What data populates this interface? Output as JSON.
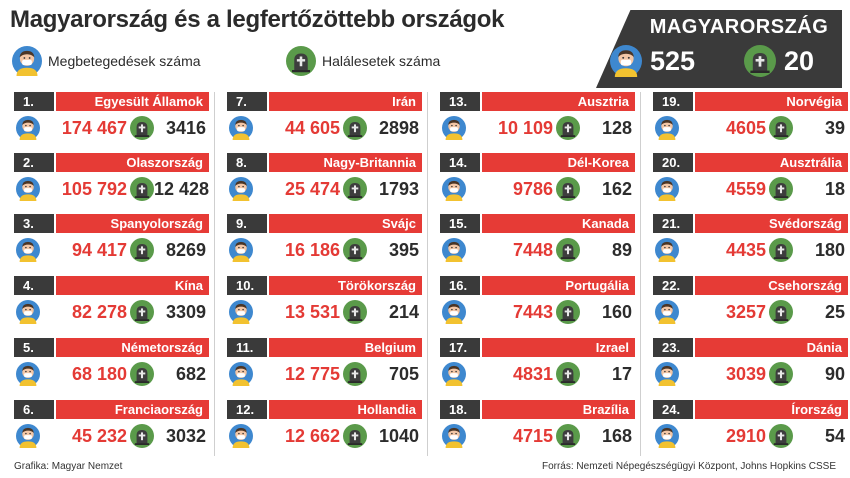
{
  "title": "Magyarország és a legfertőzöttebb országok",
  "legend": {
    "cases_icon": "person-mask-icon",
    "cases_label": "Megbetegedések száma",
    "deaths_icon": "tombstone-icon",
    "deaths_label": "Halálesetek száma"
  },
  "hungary": {
    "name": "MAGYARORSZÁG",
    "cases": "525",
    "deaths": "20"
  },
  "colors": {
    "red": "#e63b36",
    "dark": "#3a3a3a",
    "cases_text": "#e43a35",
    "face": "#f3c6a5",
    "mask_bg": "#3e88cf",
    "tomb_bg": "#5a9a4a"
  },
  "countries": [
    {
      "rank": "1.",
      "name": "Egyesült Államok",
      "cases": "174 467",
      "deaths": "3416"
    },
    {
      "rank": "2.",
      "name": "Olaszország",
      "cases": "105 792",
      "deaths": "12 428"
    },
    {
      "rank": "3.",
      "name": "Spanyolország",
      "cases": "94 417",
      "deaths": "8269"
    },
    {
      "rank": "4.",
      "name": "Kína",
      "cases": "82 278",
      "deaths": "3309"
    },
    {
      "rank": "5.",
      "name": "Németország",
      "cases": "68 180",
      "deaths": "682"
    },
    {
      "rank": "6.",
      "name": "Franciaország",
      "cases": "45 232",
      "deaths": "3032"
    },
    {
      "rank": "7.",
      "name": "Irán",
      "cases": "44 605",
      "deaths": "2898"
    },
    {
      "rank": "8.",
      "name": "Nagy-Britannia",
      "cases": "25 474",
      "deaths": "1793"
    },
    {
      "rank": "9.",
      "name": "Svájc",
      "cases": "16 186",
      "deaths": "395"
    },
    {
      "rank": "10.",
      "name": "Törökország",
      "cases": "13 531",
      "deaths": "214"
    },
    {
      "rank": "11.",
      "name": "Belgium",
      "cases": "12 775",
      "deaths": "705"
    },
    {
      "rank": "12.",
      "name": "Hollandia",
      "cases": "12 662",
      "deaths": "1040"
    },
    {
      "rank": "13.",
      "name": "Ausztria",
      "cases": "10 109",
      "deaths": "128"
    },
    {
      "rank": "14.",
      "name": "Dél-Korea",
      "cases": "9786",
      "deaths": "162"
    },
    {
      "rank": "15.",
      "name": "Kanada",
      "cases": "7448",
      "deaths": "89"
    },
    {
      "rank": "16.",
      "name": "Portugália",
      "cases": "7443",
      "deaths": "160"
    },
    {
      "rank": "17.",
      "name": "Izrael",
      "cases": "4831",
      "deaths": "17"
    },
    {
      "rank": "18.",
      "name": "Brazília",
      "cases": "4715",
      "deaths": "168"
    },
    {
      "rank": "19.",
      "name": "Norvégia",
      "cases": "4605",
      "deaths": "39"
    },
    {
      "rank": "20.",
      "name": "Ausztrália",
      "cases": "4559",
      "deaths": "18"
    },
    {
      "rank": "21.",
      "name": "Svédország",
      "cases": "4435",
      "deaths": "180"
    },
    {
      "rank": "22.",
      "name": "Csehország",
      "cases": "3257",
      "deaths": "25"
    },
    {
      "rank": "23.",
      "name": "Dánia",
      "cases": "3039",
      "deaths": "90"
    },
    {
      "rank": "24.",
      "name": "Írország",
      "cases": "2910",
      "deaths": "54"
    }
  ],
  "footer": {
    "credit": "Grafika: Magyar Nemzet",
    "source": "Forrás: Nemzeti Népegészségügyi Központ, Johns Hopkins CSSE"
  }
}
